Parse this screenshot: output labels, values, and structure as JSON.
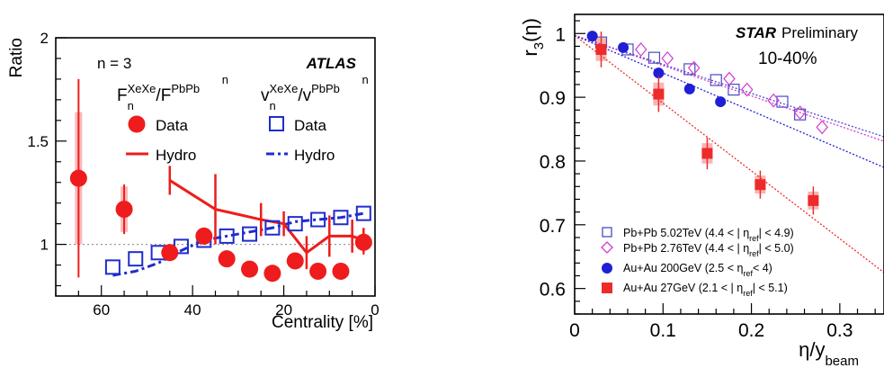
{
  "chart_data": [
    {
      "type": "scatter",
      "xlabel": "Centrality [%]",
      "ylabel": "Ratio",
      "xlim": [
        70,
        0
      ],
      "ylim": [
        0.75,
        2.0
      ],
      "x_reversed": true,
      "xticks": [
        "60",
        "40",
        "20",
        "0"
      ],
      "yticks": [
        "1",
        "1.5",
        "2"
      ],
      "text": {
        "harmonic": "n = 3",
        "experiment": "ATLAS"
      },
      "reference_line": 1.0,
      "legend": {
        "group_f": {
          "base": "F",
          "sub": "n",
          "sup_num": "XeXe",
          "slash": "/",
          "base2": "F",
          "sub2": "n",
          "sup_den": "PbPb"
        },
        "group_v": {
          "base": "v",
          "sub": "n",
          "sup_num": "XeXe",
          "slash": "/",
          "base2": "v",
          "sub2": "n",
          "sup_den": "PbPb"
        },
        "data_f": "Data",
        "hydro_f": "Hydro",
        "data_v": "Data",
        "hydro_v": "Hydro"
      },
      "colors": {
        "f": "#ee1c1c",
        "v": "#1f2ccf",
        "ref": "#999999"
      },
      "series": [
        {
          "kind": "F-data",
          "points": [
            {
              "x": 65,
              "y": 1.32,
              "err_stat": 0.48,
              "err_sys": 0.32
            },
            {
              "x": 55,
              "y": 1.17,
              "err_stat": 0.12,
              "err_sys": 0.11
            },
            {
              "x": 45,
              "y": 0.96,
              "err_stat": 0.04,
              "err_sys": 0.03
            },
            {
              "x": 37.5,
              "y": 1.04,
              "err_stat": 0.03,
              "err_sys": 0.02
            },
            {
              "x": 32.5,
              "y": 0.93,
              "err_stat": 0.02,
              "err_sys": 0.01
            },
            {
              "x": 27.5,
              "y": 0.88,
              "err_stat": 0.02,
              "err_sys": 0.01
            },
            {
              "x": 22.5,
              "y": 0.86,
              "err_stat": 0.02,
              "err_sys": 0.01
            },
            {
              "x": 17.5,
              "y": 0.92,
              "err_stat": 0.02,
              "err_sys": 0.01
            },
            {
              "x": 12.5,
              "y": 0.87,
              "err_stat": 0.02,
              "err_sys": 0.01
            },
            {
              "x": 7.5,
              "y": 0.87,
              "err_stat": 0.02,
              "err_sys": 0.01
            },
            {
              "x": 2.5,
              "y": 1.01,
              "err_stat": 0.06,
              "err_sys": 0.02
            }
          ]
        },
        {
          "kind": "F-hydro",
          "points": [
            {
              "x": 45,
              "y": 1.31,
              "err": 0.07
            },
            {
              "x": 35,
              "y": 1.17,
              "err": 0.17
            },
            {
              "x": 25,
              "y": 1.12,
              "err": 0.08
            },
            {
              "x": 20,
              "y": 1.1,
              "err": 0.06
            },
            {
              "x": 15,
              "y": 0.96,
              "err": 0.08
            },
            {
              "x": 10,
              "y": 1.04,
              "err": 0.1
            },
            {
              "x": 5,
              "y": 1.04,
              "err": 0.08
            },
            {
              "x": 2.5,
              "y": 1.02,
              "err": 0.06
            }
          ]
        },
        {
          "kind": "v-data",
          "points": [
            {
              "x": 57.5,
              "y": 0.89
            },
            {
              "x": 52.5,
              "y": 0.93
            },
            {
              "x": 47.5,
              "y": 0.96
            },
            {
              "x": 42.5,
              "y": 0.99
            },
            {
              "x": 37.5,
              "y": 1.02
            },
            {
              "x": 32.5,
              "y": 1.04
            },
            {
              "x": 27.5,
              "y": 1.05
            },
            {
              "x": 22.5,
              "y": 1.08
            },
            {
              "x": 17.5,
              "y": 1.1
            },
            {
              "x": 12.5,
              "y": 1.12
            },
            {
              "x": 7.5,
              "y": 1.13
            },
            {
              "x": 2.5,
              "y": 1.15
            }
          ]
        },
        {
          "kind": "v-hydro",
          "points": [
            {
              "x": 57.5,
              "y": 0.85
            },
            {
              "x": 52.5,
              "y": 0.87
            },
            {
              "x": 47.5,
              "y": 0.91
            },
            {
              "x": 42.5,
              "y": 0.97
            },
            {
              "x": 37.5,
              "y": 1.02
            },
            {
              "x": 32.5,
              "y": 1.04
            },
            {
              "x": 27.5,
              "y": 1.06
            },
            {
              "x": 22.5,
              "y": 1.08
            },
            {
              "x": 17.5,
              "y": 1.11
            },
            {
              "x": 12.5,
              "y": 1.12
            },
            {
              "x": 7.5,
              "y": 1.13
            },
            {
              "x": 2.5,
              "y": 1.15
            }
          ]
        }
      ]
    },
    {
      "type": "scatter",
      "xlabel_main": "η/y",
      "xlabel_sub": "beam",
      "ylabel_main": "r",
      "ylabel_sub": "3",
      "ylabel_arg": "(η)",
      "xlim": [
        0,
        0.35
      ],
      "ylim": [
        0.56,
        1.03
      ],
      "xticks": [
        "0",
        "0.1",
        "0.2",
        "0.3"
      ],
      "yticks": [
        "0.6",
        "0.7",
        "0.8",
        "0.9",
        "1"
      ],
      "text": {
        "experiment": "STAR",
        "status": "Preliminary",
        "centrality": "10-40%"
      },
      "legend": {
        "pbpb502": {
          "head": "Pb+Pb 5.02TeV (4.4 < | η",
          "sub": "ref",
          "tail": "| < 4.9)"
        },
        "pbpb276": {
          "head": "Pb+Pb 2.76TeV (4.4 < | η",
          "sub": "ref",
          "tail": "| < 5.0)"
        },
        "auau200": {
          "head": "Au+Au 200GeV (2.5 <  η",
          "sub": "ref",
          "tail": "< 4)"
        },
        "auau27": {
          "head": "Au+Au 27GeV (2.1 < | η",
          "sub": "ref",
          "tail": "| < 5.1)"
        }
      },
      "colors": {
        "pbpb502": "#4a4ac8",
        "pbpb276": "#d23cd2",
        "auau200": "#1f1fd6",
        "auau27": "#ee2b2b"
      },
      "series": [
        {
          "name": "Pb+Pb 5.02TeV",
          "marker": "open-square",
          "points": [
            {
              "x": 0.03,
              "y": 0.986
            },
            {
              "x": 0.06,
              "y": 0.975
            },
            {
              "x": 0.09,
              "y": 0.962
            },
            {
              "x": 0.13,
              "y": 0.944
            },
            {
              "x": 0.16,
              "y": 0.927
            },
            {
              "x": 0.18,
              "y": 0.912
            },
            {
              "x": 0.235,
              "y": 0.893
            },
            {
              "x": 0.255,
              "y": 0.873
            }
          ],
          "fit": [
            [
              0,
              0.997
            ],
            [
              0.35,
              0.838
            ]
          ]
        },
        {
          "name": "Pb+Pb 2.76TeV",
          "marker": "open-diamond",
          "points": [
            {
              "x": 0.075,
              "y": 0.975
            },
            {
              "x": 0.105,
              "y": 0.961
            },
            {
              "x": 0.135,
              "y": 0.946
            },
            {
              "x": 0.175,
              "y": 0.929
            },
            {
              "x": 0.195,
              "y": 0.912
            },
            {
              "x": 0.225,
              "y": 0.895
            },
            {
              "x": 0.255,
              "y": 0.876
            },
            {
              "x": 0.28,
              "y": 0.853
            }
          ],
          "fit": [
            [
              0,
              0.997
            ],
            [
              0.35,
              0.831
            ]
          ]
        },
        {
          "name": "Au+Au 200GeV",
          "marker": "filled-circle",
          "points": [
            {
              "x": 0.02,
              "y": 0.996
            },
            {
              "x": 0.055,
              "y": 0.978
            },
            {
              "x": 0.095,
              "y": 0.938
            },
            {
              "x": 0.13,
              "y": 0.913
            },
            {
              "x": 0.165,
              "y": 0.893
            }
          ],
          "fit": [
            [
              0,
              0.997
            ],
            [
              0.35,
              0.79
            ]
          ]
        },
        {
          "name": "Au+Au 27GeV",
          "marker": "filled-square",
          "points": [
            {
              "x": 0.03,
              "y": 0.975,
              "err_stat": 0.028,
              "err_sys": 0.018
            },
            {
              "x": 0.095,
              "y": 0.905,
              "err_stat": 0.028,
              "err_sys": 0.018
            },
            {
              "x": 0.15,
              "y": 0.812,
              "err_stat": 0.025,
              "err_sys": 0.016
            },
            {
              "x": 0.21,
              "y": 0.763,
              "err_stat": 0.022,
              "err_sys": 0.014
            },
            {
              "x": 0.27,
              "y": 0.738,
              "err_stat": 0.022,
              "err_sys": 0.014
            }
          ],
          "fit": [
            [
              0,
              0.997
            ],
            [
              0.35,
              0.625
            ]
          ]
        }
      ]
    }
  ]
}
